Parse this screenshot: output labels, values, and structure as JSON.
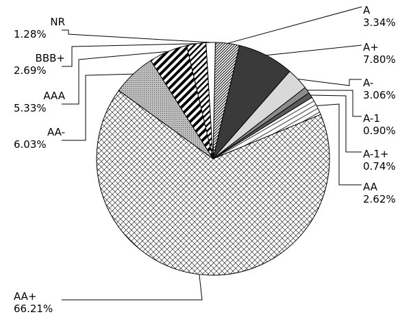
{
  "chart_data": {
    "type": "pie",
    "title": "",
    "legend": "none",
    "slices": [
      {
        "label": "A",
        "value": 3.34,
        "display": "3.34%",
        "pattern": "diagonal-dense"
      },
      {
        "label": "A+",
        "value": 7.8,
        "display": "7.80%",
        "pattern": "solid-dark"
      },
      {
        "label": "A-",
        "value": 3.06,
        "display": "3.06%",
        "pattern": "solid-light"
      },
      {
        "label": "A-1",
        "value": 0.9,
        "display": "0.90%",
        "pattern": "solid-gray"
      },
      {
        "label": "A-1+",
        "value": 0.74,
        "display": "0.74%",
        "pattern": "solid-mid"
      },
      {
        "label": "AA",
        "value": 2.62,
        "display": "2.62%",
        "pattern": "horizontal-lines"
      },
      {
        "label": "AA+",
        "value": 66.21,
        "display": "66.21%",
        "pattern": "crosshatch"
      },
      {
        "label": "AA-",
        "value": 6.03,
        "display": "6.03%",
        "pattern": "dots"
      },
      {
        "label": "AAA",
        "value": 5.33,
        "display": "5.33%",
        "pattern": "diagonal-wide"
      },
      {
        "label": "BBB+",
        "value": 2.69,
        "display": "2.69%",
        "pattern": "diagonal-thin"
      },
      {
        "label": "NR",
        "value": 1.28,
        "display": "1.28%",
        "pattern": "white"
      }
    ],
    "colors": {
      "outline": "#000000",
      "dark": "#3a3a3a",
      "light": "#d9d9d9",
      "gray": "#8c8c8c",
      "mid": "#5a5a5a"
    }
  }
}
